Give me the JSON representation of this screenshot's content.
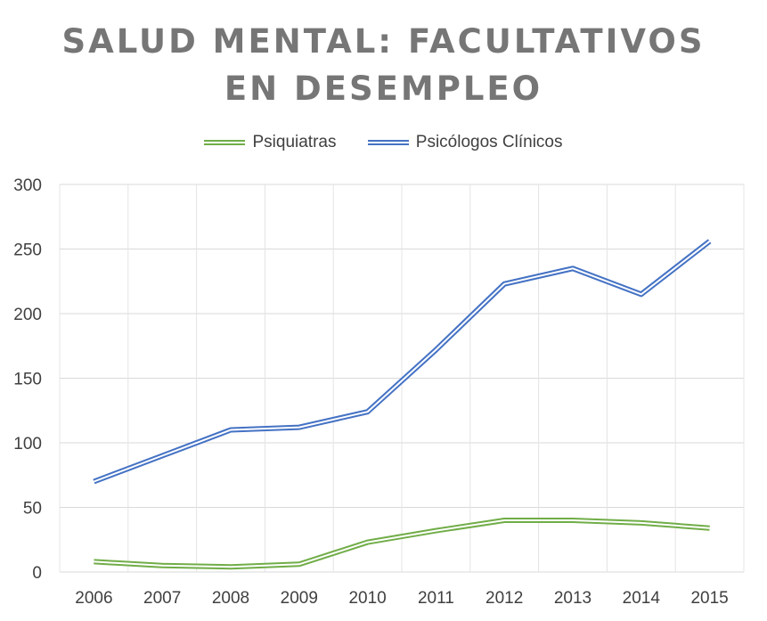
{
  "chart_data": {
    "type": "line",
    "title_lines": [
      "SALUD MENTAL: FACULTATIVOS",
      "EN DESEMPLEO"
    ],
    "categories": [
      "2006",
      "2007",
      "2008",
      "2009",
      "2010",
      "2011",
      "2012",
      "2013",
      "2014",
      "2015"
    ],
    "ylim": [
      0,
      300
    ],
    "yticks": [
      "0",
      "50",
      "100",
      "150",
      "200",
      "250",
      "300"
    ],
    "ytick_values": [
      0,
      50,
      100,
      150,
      200,
      250,
      300
    ],
    "grid": true,
    "legend_position": "top",
    "series": [
      {
        "name": "Psiquiatras",
        "color": "#70AD47",
        "values": [
          8,
          5,
          4,
          6,
          23,
          32,
          40,
          40,
          38,
          34
        ]
      },
      {
        "name": "Psicólogos Clínicos",
        "color": "#4472C4",
        "values": [
          70,
          90,
          110,
          112,
          124,
          172,
          223,
          235,
          215,
          256
        ]
      }
    ]
  }
}
